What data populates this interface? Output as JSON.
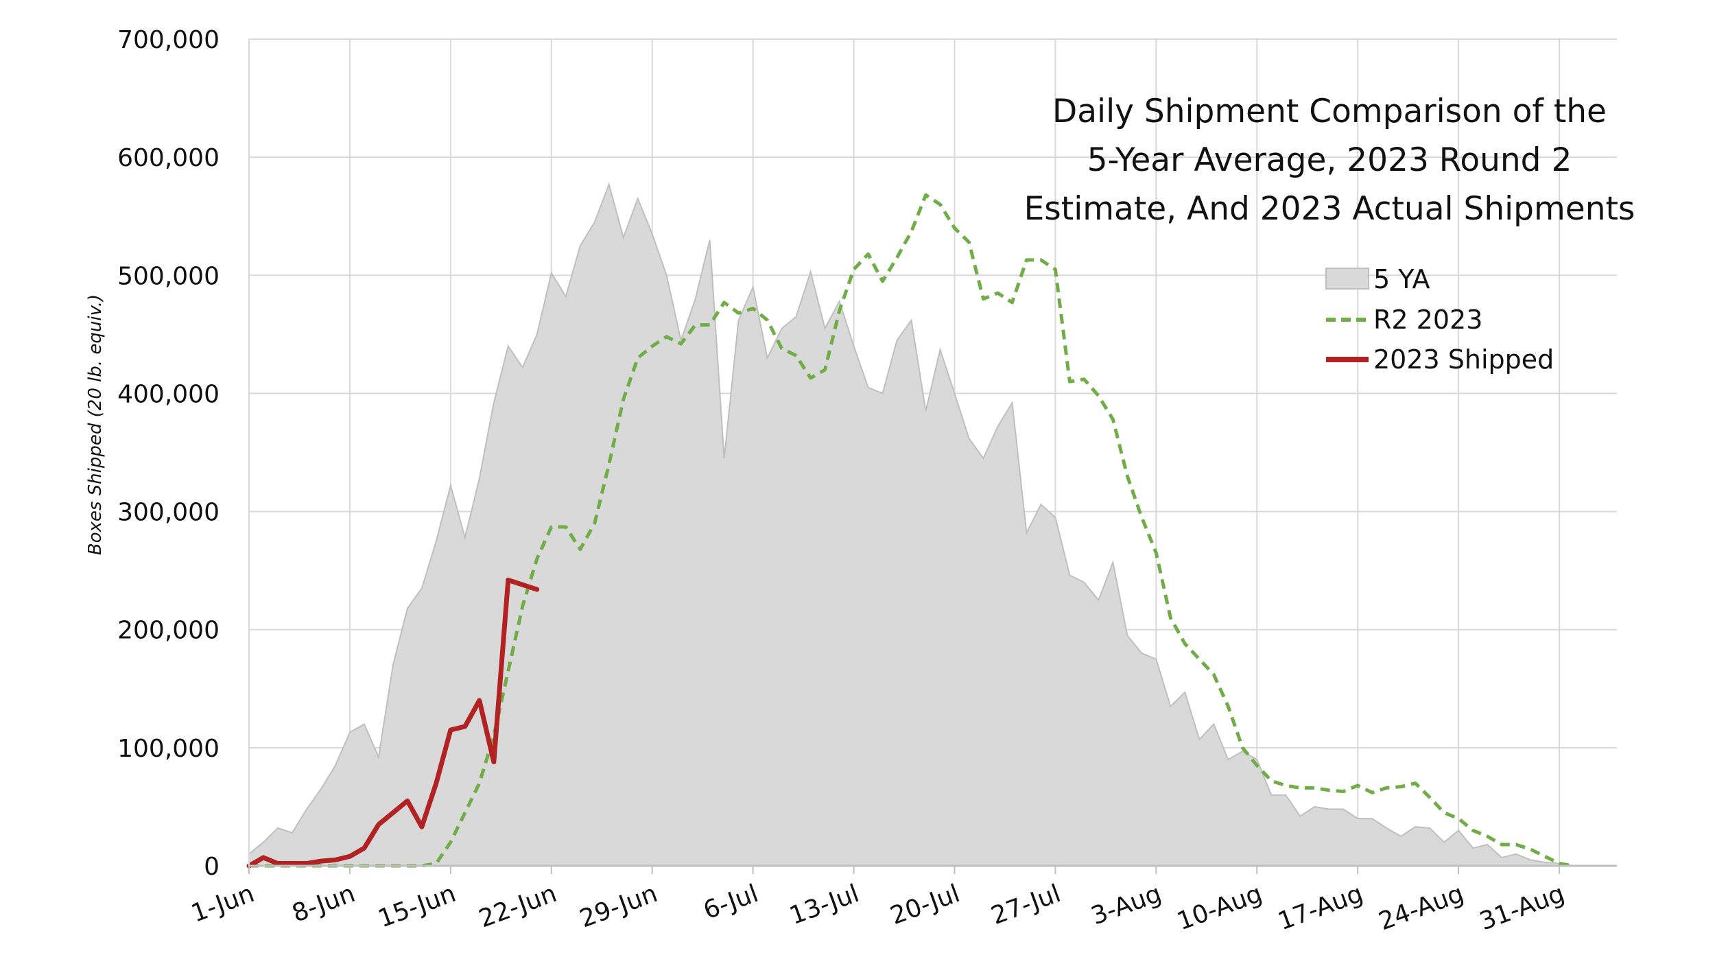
{
  "chart_data": {
    "type": "area",
    "title_lines": [
      "Daily Shipment Comparison of the",
      "5-Year Average, 2023 Round 2",
      "Estimate, And 2023 Actual Shipments"
    ],
    "xlabel": "",
    "ylabel": "Boxes Shipped (20 lb. equiv.)",
    "ylim": [
      0,
      700000
    ],
    "y_ticks": [
      "0",
      "100,000",
      "200,000",
      "300,000",
      "400,000",
      "500,000",
      "600,000",
      "700,000"
    ],
    "x_start": "1-Jun",
    "x_tick_labels": [
      "1-Jun",
      "8-Jun",
      "15-Jun",
      "22-Jun",
      "29-Jun",
      "6-Jul",
      "13-Jul",
      "20-Jul",
      "27-Jul",
      "3-Aug",
      "10-Aug",
      "17-Aug",
      "24-Aug",
      "31-Aug"
    ],
    "x_tick_days": [
      0,
      7,
      14,
      21,
      28,
      35,
      42,
      49,
      56,
      63,
      70,
      77,
      84,
      91
    ],
    "xlim_days": [
      0,
      95
    ],
    "grid": true,
    "legend_position": "right",
    "series": [
      {
        "name": "5 YA",
        "style": "area",
        "color": "#d9d9d9",
        "edge_color": "#bfbfbf",
        "days": [
          0,
          1,
          2,
          3,
          4,
          5,
          6,
          7,
          8,
          9,
          10,
          11,
          12,
          13,
          14,
          15,
          16,
          17,
          18,
          19,
          20,
          21,
          22,
          23,
          24,
          25,
          26,
          27,
          28,
          29,
          30,
          31,
          32,
          33,
          34,
          35,
          36,
          37,
          38,
          39,
          40,
          41,
          42,
          43,
          44,
          45,
          46,
          47,
          48,
          49,
          50,
          51,
          52,
          53,
          54,
          55,
          56,
          57,
          58,
          59,
          60,
          61,
          62,
          63,
          64,
          65,
          66,
          67,
          68,
          69,
          70,
          71,
          72,
          73,
          74,
          75,
          76,
          77,
          78,
          79,
          80,
          81,
          82,
          83,
          84,
          85,
          86,
          87,
          88,
          89,
          90,
          91,
          92
        ],
        "values": [
          10000,
          20000,
          32000,
          28000,
          48000,
          65000,
          85000,
          113000,
          120000,
          92000,
          170000,
          218000,
          235000,
          275000,
          322000,
          278000,
          328000,
          392000,
          440000,
          422000,
          450000,
          502000,
          482000,
          525000,
          545000,
          577000,
          532000,
          565000,
          535000,
          500000,
          445000,
          480000,
          530000,
          345000,
          462000,
          490000,
          430000,
          455000,
          465000,
          503000,
          455000,
          478000,
          440000,
          405000,
          400000,
          445000,
          462000,
          385000,
          437000,
          400000,
          362000,
          345000,
          372000,
          392000,
          282000,
          306000,
          295000,
          246000,
          240000,
          225000,
          257000,
          195000,
          180000,
          175000,
          135000,
          147000,
          107000,
          120000,
          90000,
          97000,
          90000,
          60000,
          60000,
          42000,
          50000,
          48000,
          48000,
          40000,
          40000,
          32000,
          25000,
          33000,
          32000,
          20000,
          30000,
          15000,
          18000,
          7000,
          10000,
          5000,
          3000,
          2000,
          0
        ],
        "x": [
          "1-Jun",
          "2-Jun",
          "3-Jun",
          "4-Jun",
          "5-Jun",
          "6-Jun",
          "7-Jun",
          "8-Jun",
          "9-Jun",
          "10-Jun",
          "11-Jun",
          "12-Jun",
          "13-Jun",
          "14-Jun",
          "15-Jun",
          "16-Jun",
          "17-Jun",
          "18-Jun",
          "19-Jun",
          "20-Jun",
          "21-Jun",
          "22-Jun",
          "23-Jun",
          "24-Jun",
          "25-Jun",
          "26-Jun",
          "27-Jun",
          "28-Jun",
          "29-Jun",
          "30-Jun",
          "1-Jul",
          "2-Jul",
          "3-Jul",
          "4-Jul",
          "5-Jul",
          "6-Jul",
          "7-Jul",
          "8-Jul",
          "9-Jul",
          "10-Jul",
          "11-Jul",
          "12-Jul",
          "13-Jul",
          "14-Jul",
          "15-Jul",
          "16-Jul",
          "17-Jul",
          "18-Jul",
          "19-Jul",
          "20-Jul",
          "21-Jul",
          "22-Jul",
          "23-Jul",
          "24-Jul",
          "25-Jul",
          "26-Jul",
          "27-Jul",
          "28-Jul",
          "29-Jul",
          "30-Jul",
          "31-Jul",
          "1-Aug",
          "2-Aug",
          "3-Aug",
          "4-Aug",
          "5-Aug",
          "6-Aug",
          "7-Aug",
          "8-Aug",
          "9-Aug",
          "10-Aug",
          "11-Aug",
          "12-Aug",
          "13-Aug",
          "14-Aug",
          "15-Aug",
          "16-Aug",
          "17-Aug",
          "18-Aug",
          "19-Aug",
          "20-Aug",
          "21-Aug",
          "22-Aug",
          "23-Aug",
          "24-Aug",
          "25-Aug",
          "26-Aug",
          "27-Aug",
          "28-Aug",
          "29-Aug",
          "30-Aug",
          "31-Aug",
          "1-Sep"
        ]
      },
      {
        "name": "R2 2023",
        "style": "dashed-line",
        "color": "#70ad47",
        "days": [
          0,
          1,
          2,
          3,
          4,
          5,
          6,
          7,
          8,
          9,
          10,
          11,
          12,
          13,
          14,
          15,
          16,
          17,
          18,
          19,
          20,
          21,
          22,
          23,
          24,
          25,
          26,
          27,
          28,
          29,
          30,
          31,
          32,
          33,
          34,
          35,
          36,
          37,
          38,
          39,
          40,
          41,
          42,
          43,
          44,
          45,
          46,
          47,
          48,
          49,
          50,
          51,
          52,
          53,
          54,
          55,
          56,
          57,
          58,
          59,
          60,
          61,
          62,
          63,
          64,
          65,
          66,
          67,
          68,
          69,
          70,
          71,
          72,
          73,
          74,
          75,
          76,
          77,
          78,
          79,
          80,
          81,
          82,
          83,
          84,
          85,
          86,
          87,
          88,
          89,
          90,
          91,
          92
        ],
        "values": [
          0,
          0,
          0,
          0,
          0,
          0,
          0,
          0,
          0,
          0,
          0,
          0,
          0,
          2000,
          20000,
          45000,
          70000,
          110000,
          165000,
          220000,
          260000,
          287000,
          287000,
          268000,
          290000,
          340000,
          395000,
          430000,
          440000,
          448000,
          442000,
          458000,
          458000,
          477000,
          468000,
          472000,
          462000,
          438000,
          432000,
          413000,
          420000,
          470000,
          505000,
          518000,
          495000,
          515000,
          537000,
          568000,
          560000,
          540000,
          528000,
          480000,
          485000,
          477000,
          513000,
          513000,
          505000,
          410000,
          412000,
          398000,
          378000,
          330000,
          295000,
          265000,
          210000,
          188000,
          175000,
          162000,
          135000,
          100000,
          85000,
          72000,
          68000,
          66000,
          66000,
          64000,
          63000,
          68000,
          62000,
          66000,
          67000,
          70000,
          58000,
          45000,
          40000,
          30000,
          25000,
          18000,
          18000,
          14000,
          8000,
          2000,
          0
        ],
        "x": [
          "1-Jun",
          "2-Jun",
          "3-Jun",
          "4-Jun",
          "5-Jun",
          "6-Jun",
          "7-Jun",
          "8-Jun",
          "9-Jun",
          "10-Jun",
          "11-Jun",
          "12-Jun",
          "13-Jun",
          "14-Jun",
          "15-Jun",
          "16-Jun",
          "17-Jun",
          "18-Jun",
          "19-Jun",
          "20-Jun",
          "21-Jun",
          "22-Jun",
          "23-Jun",
          "24-Jun",
          "25-Jun",
          "26-Jun",
          "27-Jun",
          "28-Jun",
          "29-Jun",
          "30-Jun",
          "1-Jul",
          "2-Jul",
          "3-Jul",
          "4-Jul",
          "5-Jul",
          "6-Jul",
          "7-Jul",
          "8-Jul",
          "9-Jul",
          "10-Jul",
          "11-Jul",
          "12-Jul",
          "13-Jul",
          "14-Jul",
          "15-Jul",
          "16-Jul",
          "17-Jul",
          "18-Jul",
          "19-Jul",
          "20-Jul",
          "21-Jul",
          "22-Jul",
          "23-Jul",
          "24-Jul",
          "25-Jul",
          "26-Jul",
          "27-Jul",
          "28-Jul",
          "29-Jul",
          "30-Jul",
          "31-Jul",
          "1-Aug",
          "2-Aug",
          "3-Aug",
          "4-Aug",
          "5-Aug",
          "6-Aug",
          "7-Aug",
          "8-Aug",
          "9-Aug",
          "10-Aug",
          "11-Aug",
          "12-Aug",
          "13-Aug",
          "14-Aug",
          "15-Aug",
          "16-Aug",
          "17-Aug",
          "18-Aug",
          "19-Aug",
          "20-Aug",
          "21-Aug",
          "22-Aug",
          "23-Aug",
          "24-Aug",
          "25-Aug",
          "26-Aug",
          "27-Aug",
          "28-Aug",
          "29-Aug",
          "30-Aug",
          "31-Aug",
          "1-Sep"
        ]
      },
      {
        "name": "2023 Shipped",
        "style": "line",
        "color": "#b22222",
        "days": [
          0,
          1,
          2,
          3,
          4,
          5,
          6,
          7,
          8,
          9,
          10,
          11,
          12,
          13,
          14,
          15,
          16,
          17,
          18,
          19,
          20
        ],
        "values": [
          0,
          7000,
          2000,
          2000,
          2000,
          4000,
          5000,
          8000,
          15000,
          35000,
          45000,
          55000,
          33000,
          70000,
          115000,
          118000,
          140000,
          88000,
          242000,
          238000,
          234000
        ],
        "x": [
          "1-Jun",
          "2-Jun",
          "3-Jun",
          "4-Jun",
          "5-Jun",
          "6-Jun",
          "7-Jun",
          "8-Jun",
          "9-Jun",
          "10-Jun",
          "11-Jun",
          "12-Jun",
          "13-Jun",
          "14-Jun",
          "15-Jun",
          "16-Jun",
          "17-Jun",
          "18-Jun",
          "19-Jun",
          "20-Jun",
          "21-Jun"
        ]
      }
    ]
  }
}
